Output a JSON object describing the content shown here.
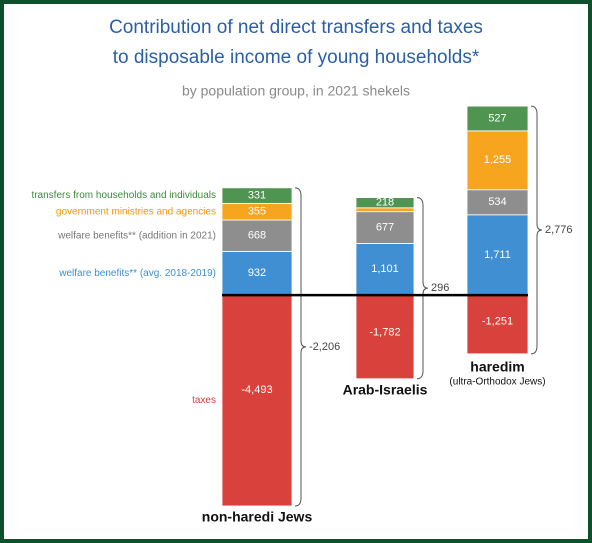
{
  "chart_data": {
    "type": "stacked-bar",
    "title": [
      "Contribution of net direct transfers and taxes",
      "to disposable income of young households*"
    ],
    "subtitle": "by population group, in 2021 shekels",
    "categories": [
      "non-haredi Jews",
      "Arab-Israelis",
      "haredim"
    ],
    "category_notes": [
      null,
      null,
      "(ultra-Orthodox Jews)"
    ],
    "series": [
      {
        "name": "welfare benefits** (avg. 2018-2019)",
        "color": "#3f8fd2",
        "values": [
          932,
          1101,
          1711
        ],
        "value_labels": [
          "932",
          "1,101",
          "1,711"
        ]
      },
      {
        "name": "welfare benefits** (addition in 2021)",
        "color": "#8e8e8e",
        "values": [
          668,
          677,
          534
        ],
        "value_labels": [
          "668",
          "677",
          "534"
        ]
      },
      {
        "name": "government ministries and agencies",
        "color": "#f7a51f",
        "values": [
          355,
          82,
          1255
        ],
        "value_labels": [
          "355",
          null,
          "1,255"
        ]
      },
      {
        "name": "transfers from households and individuals",
        "color": "#4f9450",
        "values": [
          331,
          218,
          527
        ],
        "value_labels": [
          "331",
          "218",
          "527"
        ]
      },
      {
        "name": "taxes",
        "color": "#d9423c",
        "values": [
          -4493,
          -1782,
          -1251
        ],
        "value_labels": [
          "-4,493",
          "-1,782",
          "-1,251"
        ]
      }
    ],
    "net": [
      -2206,
      296,
      2776
    ],
    "net_labels": [
      "-2,206",
      "296",
      "2,776"
    ],
    "ylim": [
      -4600,
      4200
    ]
  }
}
